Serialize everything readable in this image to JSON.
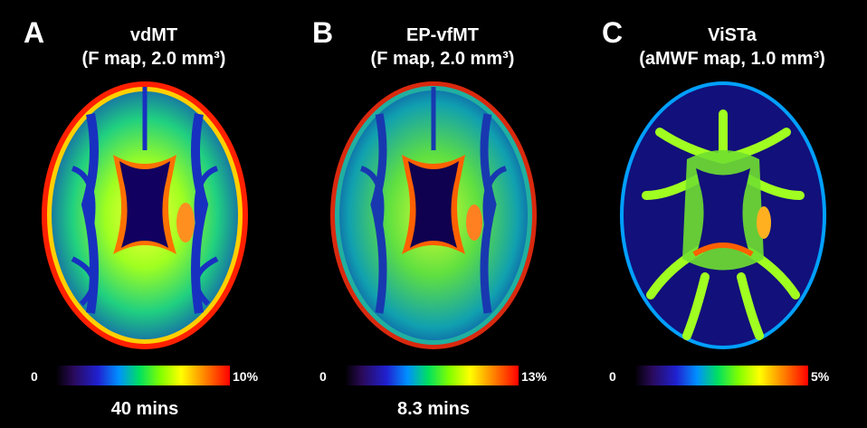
{
  "panels": [
    {
      "letter": "A",
      "title_line1": "vdMT",
      "title_line2": "(F map, 2.0 mm³)",
      "scale_min": "0",
      "scale_max": "10%",
      "time": "40 mins"
    },
    {
      "letter": "B",
      "title_line1": "EP-vfMT",
      "title_line2": "(F map, 2.0 mm³)",
      "scale_min": "0",
      "scale_max": "13%",
      "time": "8.3 mins"
    },
    {
      "letter": "C",
      "title_line1": "ViSTa",
      "title_line2": "(aMWF map, 1.0 mm³)",
      "scale_min": "0",
      "scale_max": "5%",
      "time": ""
    }
  ],
  "colors": {
    "background": "#000000",
    "colormap": [
      "#000000",
      "#2a0a5a",
      "#2020d0",
      "#0090ff",
      "#00e060",
      "#80ff00",
      "#ffff00",
      "#ff8000",
      "#ff0000"
    ]
  }
}
